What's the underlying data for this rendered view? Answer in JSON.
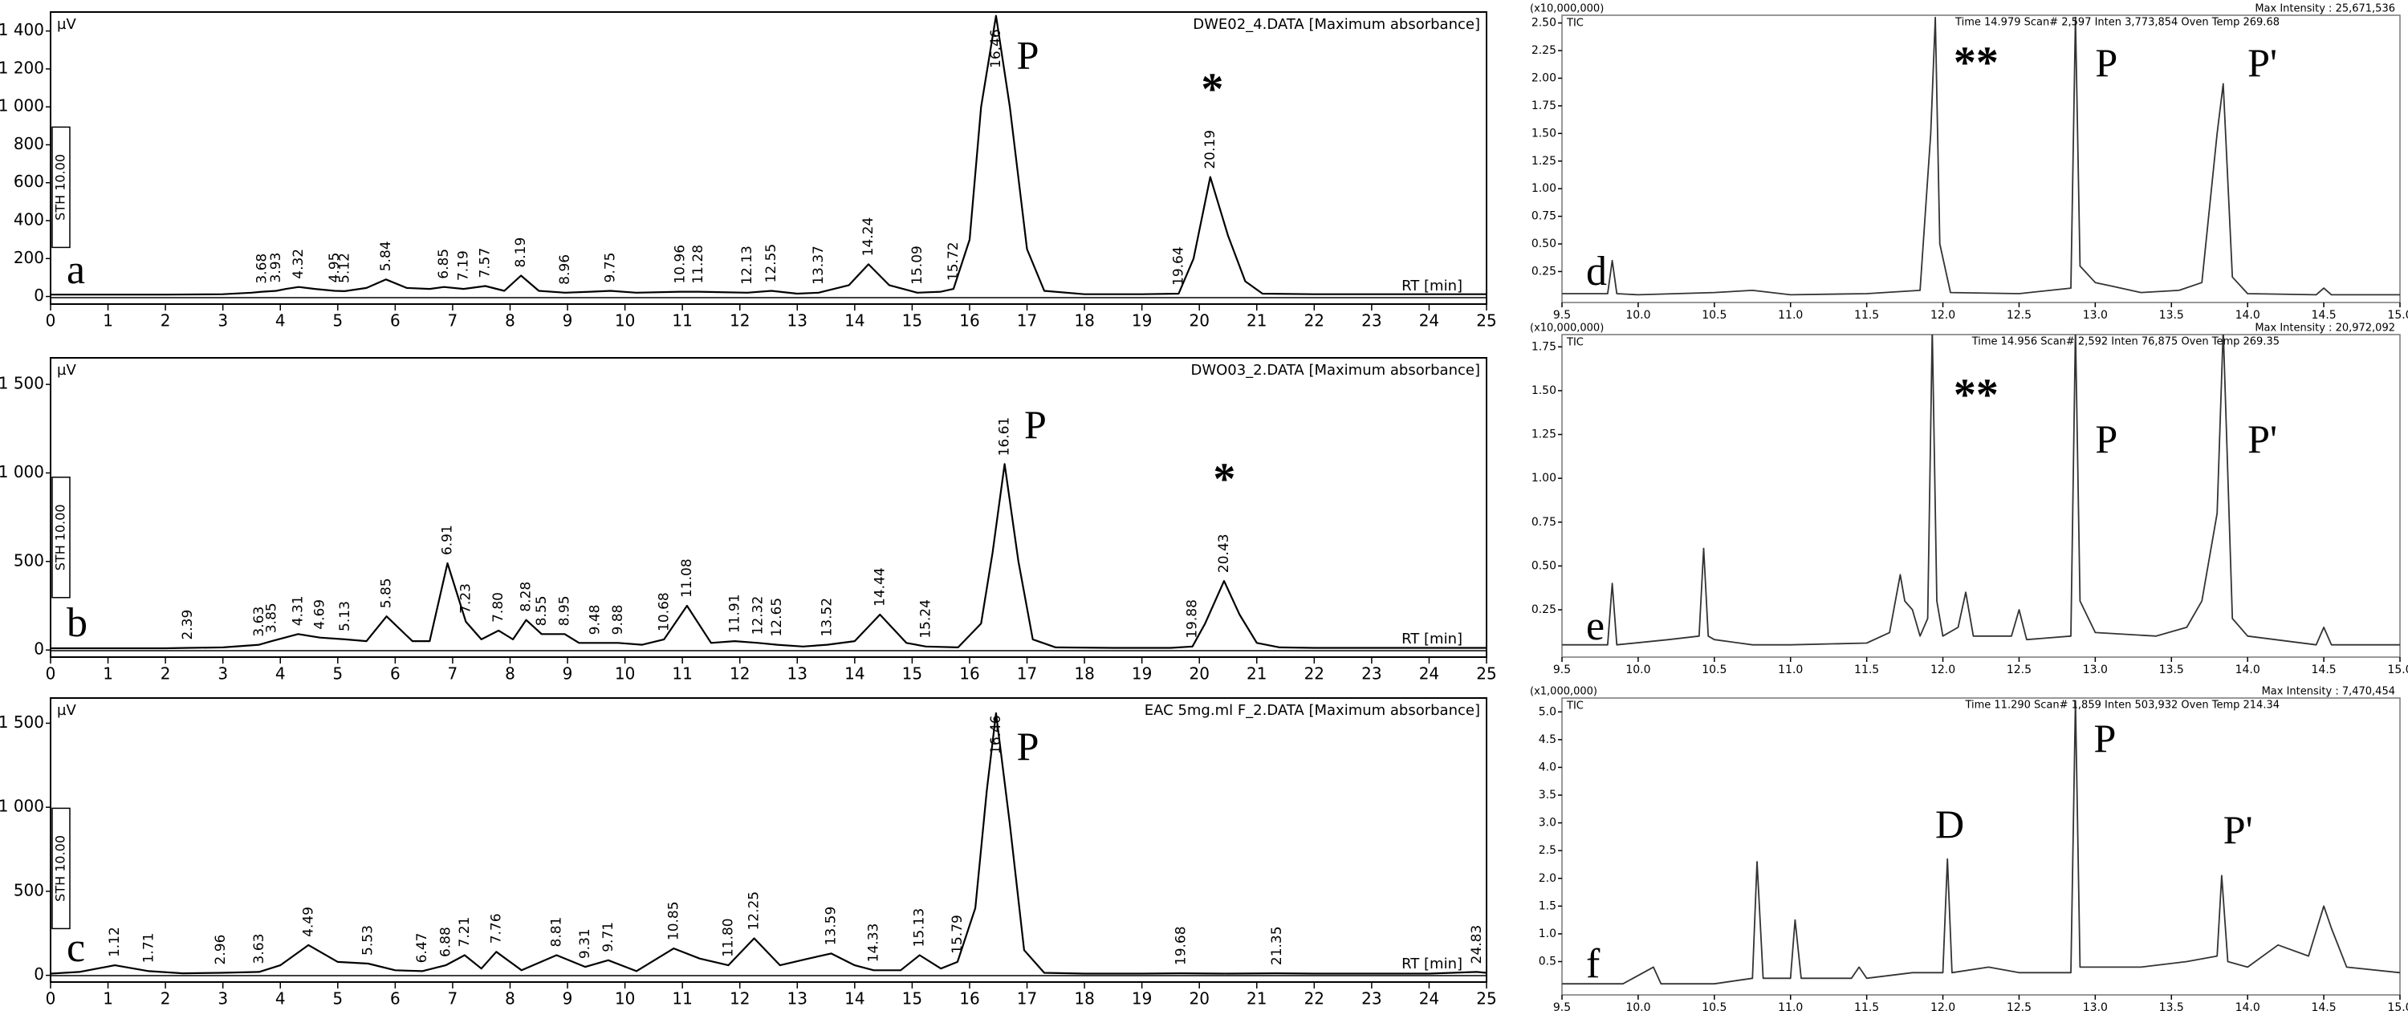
{
  "chart_data": [
    {
      "type": "line",
      "side": "left",
      "panel_label": "a",
      "title": "DWE02_4.DATA [Maximum absorbance]",
      "ylabel": "µV",
      "xlabel": "RT [min]",
      "sth": "STH 10.00",
      "x": [
        0,
        1,
        2,
        3,
        3.5,
        3.68,
        3.93,
        4.1,
        4.32,
        4.6,
        4.95,
        5.12,
        5.5,
        5.84,
        6.2,
        6.6,
        6.85,
        7.19,
        7.57,
        7.9,
        8.19,
        8.5,
        8.96,
        9.4,
        9.75,
        10.2,
        10.96,
        11.28,
        12.13,
        12.55,
        13.0,
        13.37,
        13.9,
        14.24,
        14.6,
        15.09,
        15.5,
        15.72,
        16.0,
        16.2,
        16.46,
        16.7,
        17.0,
        17.3,
        18,
        19,
        19.64,
        19.9,
        20.19,
        20.5,
        20.8,
        21.1,
        22,
        23,
        24,
        25
      ],
      "series": [
        {
          "color": "#000000",
          "values": [
            10,
            10,
            10,
            12,
            20,
            25,
            30,
            40,
            50,
            40,
            30,
            28,
            45,
            90,
            45,
            40,
            50,
            40,
            55,
            30,
            110,
            30,
            20,
            25,
            30,
            20,
            25,
            25,
            20,
            30,
            15,
            20,
            60,
            170,
            60,
            20,
            25,
            40,
            300,
            1000,
            1480,
            1000,
            250,
            30,
            12,
            12,
            15,
            200,
            630,
            320,
            80,
            15,
            12,
            12,
            12,
            12
          ]
        }
      ],
      "xlim": [
        0,
        25
      ],
      "ylim": [
        -40,
        1500
      ],
      "xticks": [
        0,
        1,
        2,
        3,
        4,
        5,
        6,
        7,
        8,
        9,
        10,
        11,
        12,
        13,
        14,
        15,
        16,
        17,
        18,
        19,
        20,
        21,
        22,
        23,
        24,
        25
      ],
      "yticks": [
        0,
        200,
        400,
        600,
        800,
        {
          "value": 1000,
          "label": "1 000"
        },
        {
          "value": 1200,
          "label": "1 200"
        },
        {
          "value": 1400,
          "label": "1 400"
        }
      ],
      "peak_labels": [
        3.68,
        3.93,
        4.32,
        4.95,
        5.12,
        5.84,
        6.85,
        7.19,
        7.57,
        8.19,
        8.96,
        9.75,
        10.96,
        11.28,
        12.13,
        12.55,
        13.37,
        14.24,
        15.09,
        15.72,
        16.46,
        19.64,
        20.19
      ],
      "annotations": [
        {
          "text": "P",
          "x": 16.82,
          "y": 1250
        },
        {
          "text": "*",
          "x": 20.03,
          "y": 1070
        }
      ]
    },
    {
      "type": "line",
      "side": "left",
      "panel_label": "b",
      "title": "DWO03_2.DATA [Maximum absorbance]",
      "ylabel": "µV",
      "xlabel": "RT [min]",
      "sth": "STH 10.00",
      "x": [
        0,
        1,
        2,
        2.39,
        3,
        3.63,
        3.85,
        4.31,
        4.69,
        5.13,
        5.5,
        5.85,
        6.3,
        6.6,
        6.91,
        7.23,
        7.5,
        7.8,
        8.05,
        8.28,
        8.55,
        8.95,
        9.2,
        9.48,
        9.88,
        10.3,
        10.68,
        11.08,
        11.5,
        11.91,
        12.32,
        12.65,
        13.1,
        13.52,
        14.0,
        14.44,
        14.9,
        15.24,
        15.8,
        16.2,
        16.4,
        16.61,
        16.85,
        17.1,
        17.5,
        18.5,
        19.5,
        19.88,
        20.1,
        20.43,
        20.7,
        21.0,
        21.4,
        22,
        23,
        24,
        25
      ],
      "series": [
        {
          "color": "#000000",
          "values": [
            10,
            10,
            10,
            12,
            15,
            30,
            50,
            90,
            70,
            60,
            50,
            190,
            50,
            50,
            490,
            160,
            60,
            110,
            60,
            170,
            90,
            90,
            40,
            40,
            40,
            30,
            60,
            250,
            40,
            50,
            40,
            30,
            20,
            30,
            50,
            200,
            40,
            20,
            15,
            150,
            550,
            1050,
            500,
            60,
            15,
            12,
            12,
            20,
            150,
            390,
            200,
            40,
            15,
            12,
            12,
            12,
            12
          ]
        }
      ],
      "xlim": [
        0,
        25
      ],
      "ylim": [
        -40,
        1650
      ],
      "xticks": [
        0,
        1,
        2,
        3,
        4,
        5,
        6,
        7,
        8,
        9,
        10,
        11,
        12,
        13,
        14,
        15,
        16,
        17,
        18,
        19,
        20,
        21,
        22,
        23,
        24,
        25
      ],
      "yticks": [
        0,
        500,
        {
          "value": 1000,
          "label": "1 000"
        },
        {
          "value": 1500,
          "label": "1 500"
        }
      ],
      "peak_labels": [
        2.39,
        3.63,
        3.85,
        4.31,
        4.69,
        5.13,
        5.85,
        6.91,
        7.23,
        {
          "value": 7.8,
          "label": "7.80"
        },
        8.28,
        8.55,
        8.95,
        9.48,
        9.88,
        10.68,
        11.08,
        11.91,
        12.32,
        12.65,
        13.52,
        14.44,
        15.24,
        16.61,
        19.88,
        20.43
      ],
      "annotations": [
        {
          "text": "P",
          "x": 16.95,
          "y": 1250
        },
        {
          "text": "*",
          "x": 20.24,
          "y": 940
        }
      ]
    },
    {
      "type": "line",
      "side": "left",
      "panel_label": "c",
      "title": "EAC 5mg.ml F_2.DATA [Maximum absorbance]",
      "ylabel": "µV",
      "xlabel": "RT [min]",
      "sth": "STH 10.00",
      "x": [
        0,
        0.5,
        1.12,
        1.71,
        2.3,
        2.96,
        3.63,
        4.0,
        4.49,
        5.0,
        5.53,
        6.0,
        6.47,
        6.88,
        7.21,
        7.5,
        7.76,
        8.2,
        8.81,
        9.31,
        9.71,
        10.2,
        10.85,
        11.3,
        11.8,
        12.25,
        12.7,
        13.2,
        13.59,
        14.0,
        14.33,
        14.8,
        15.13,
        15.5,
        15.79,
        16.1,
        16.3,
        16.46,
        16.7,
        16.95,
        17.3,
        18,
        19,
        19.68,
        20.5,
        21.35,
        22,
        23,
        24,
        24.83,
        25
      ],
      "series": [
        {
          "color": "#000000",
          "values": [
            10,
            20,
            60,
            25,
            12,
            15,
            20,
            60,
            180,
            80,
            70,
            30,
            25,
            60,
            120,
            40,
            140,
            30,
            120,
            50,
            90,
            25,
            160,
            100,
            60,
            220,
            60,
            100,
            130,
            60,
            30,
            30,
            120,
            40,
            80,
            400,
            1100,
            1560,
            900,
            150,
            15,
            10,
            10,
            12,
            10,
            12,
            10,
            10,
            10,
            20,
            15
          ]
        }
      ],
      "xlim": [
        0,
        25
      ],
      "ylim": [
        -40,
        1650
      ],
      "xticks": [
        0,
        1,
        2,
        3,
        4,
        5,
        6,
        7,
        8,
        9,
        10,
        11,
        12,
        13,
        14,
        15,
        16,
        17,
        18,
        19,
        20,
        21,
        22,
        23,
        24,
        25
      ],
      "yticks": [
        0,
        500,
        {
          "value": 1000,
          "label": "1 000"
        },
        {
          "value": 1500,
          "label": "1 500"
        }
      ],
      "peak_labels": [
        1.12,
        1.71,
        2.96,
        3.63,
        4.49,
        5.53,
        6.47,
        6.88,
        7.21,
        7.76,
        8.81,
        9.31,
        9.71,
        10.85,
        {
          "value": 11.8,
          "label": "11.80"
        },
        12.25,
        13.59,
        14.33,
        15.13,
        15.79,
        16.46,
        19.68,
        21.35,
        24.83
      ],
      "annotations": [
        {
          "text": "P",
          "x": 16.82,
          "y": 1336
        }
      ]
    },
    {
      "type": "line",
      "side": "right",
      "panel_label": "d",
      "scale_note": "(x10,000,000)",
      "trace_name": "TIC",
      "status": "Time 14.979   Scan# 2,597   Inten   3,773,854   Oven Temp 269.68",
      "max_intensity": "Max Intensity : 25,671,536",
      "x": [
        9.5,
        9.8,
        9.83,
        9.86,
        10.0,
        10.5,
        10.75,
        11.0,
        11.5,
        11.85,
        11.92,
        11.95,
        11.98,
        12.05,
        12.5,
        12.84,
        12.87,
        12.9,
        13.0,
        13.1,
        13.3,
        13.55,
        13.7,
        13.8,
        13.84,
        13.9,
        14.0,
        14.45,
        14.5,
        14.55,
        15.0
      ],
      "series": [
        {
          "color": "#333333",
          "values": [
            0.05,
            0.05,
            0.35,
            0.05,
            0.04,
            0.06,
            0.08,
            0.04,
            0.05,
            0.08,
            1.5,
            2.55,
            0.5,
            0.06,
            0.05,
            0.1,
            2.55,
            0.3,
            0.15,
            0.12,
            0.06,
            0.08,
            0.15,
            1.5,
            1.95,
            0.2,
            0.05,
            0.04,
            0.1,
            0.04,
            0.04
          ]
        }
      ],
      "xlim": [
        9.5,
        15.0
      ],
      "ylim": [
        -0.03,
        2.57
      ],
      "xticks": [
        9.5,
        {
          "value": 10,
          "label": "10.0"
        },
        10.5,
        {
          "value": 11,
          "label": "11.0"
        },
        11.5,
        {
          "value": 12,
          "label": "12.0"
        },
        12.5,
        {
          "value": 13,
          "label": "13.0"
        },
        13.5,
        {
          "value": 14,
          "label": "14.0"
        },
        14.5,
        {
          "value": 15,
          "label": "15.0"
        }
      ],
      "yticks": [
        0.25,
        {
          "value": 0.5,
          "label": "0.50"
        },
        0.75,
        {
          "value": 1,
          "label": "1.00"
        },
        1.25,
        {
          "value": 1.5,
          "label": "1.50"
        },
        1.75,
        {
          "value": 2,
          "label": "2.00"
        },
        2.25,
        {
          "value": 2.5,
          "label": "2.50"
        }
      ],
      "annotations": [
        {
          "text": "**",
          "x": 12.07,
          "y": 2.1
        },
        {
          "text": "P",
          "x": 13.0,
          "y": 2.1
        },
        {
          "text": "P'",
          "x": 14.0,
          "y": 2.1
        }
      ]
    },
    {
      "type": "line",
      "side": "right",
      "panel_label": "e",
      "scale_note": "(x10,000,000)",
      "trace_name": "TIC",
      "status": "Time 14.956   Scan# 2,592   Inten   76,875   Oven Temp 269.35",
      "max_intensity": "Max Intensity : 20,972,092",
      "x": [
        9.5,
        9.8,
        9.83,
        9.86,
        10.2,
        10.4,
        10.43,
        10.46,
        10.5,
        10.75,
        11.0,
        11.5,
        11.65,
        11.72,
        11.75,
        11.8,
        11.85,
        11.9,
        11.93,
        11.96,
        12.0,
        12.1,
        12.15,
        12.2,
        12.45,
        12.5,
        12.55,
        12.84,
        12.87,
        12.9,
        13.0,
        13.4,
        13.6,
        13.7,
        13.8,
        13.84,
        13.9,
        14.0,
        14.45,
        14.5,
        14.55,
        15.0
      ],
      "series": [
        {
          "color": "#333333",
          "values": [
            0.05,
            0.05,
            0.4,
            0.05,
            0.08,
            0.1,
            0.6,
            0.1,
            0.08,
            0.05,
            0.05,
            0.06,
            0.12,
            0.45,
            0.3,
            0.25,
            0.1,
            0.2,
            1.85,
            0.3,
            0.1,
            0.15,
            0.35,
            0.1,
            0.1,
            0.25,
            0.08,
            0.1,
            1.85,
            0.3,
            0.12,
            0.1,
            0.15,
            0.3,
            0.8,
            1.85,
            0.2,
            0.1,
            0.05,
            0.15,
            0.05,
            0.05
          ]
        }
      ],
      "xlim": [
        9.5,
        15.0
      ],
      "ylim": [
        -0.02,
        1.82
      ],
      "xticks": [
        9.5,
        {
          "value": 10,
          "label": "10.0"
        },
        10.5,
        {
          "value": 11,
          "label": "11.0"
        },
        11.5,
        {
          "value": 12,
          "label": "12.0"
        },
        12.5,
        {
          "value": 13,
          "label": "13.0"
        },
        13.5,
        {
          "value": 14,
          "label": "14.0"
        },
        14.5,
        {
          "value": 15,
          "label": "15.0"
        }
      ],
      "yticks": [
        0.25,
        {
          "value": 0.5,
          "label": "0.50"
        },
        0.75,
        {
          "value": 1,
          "label": "1.00"
        },
        1.25,
        {
          "value": 1.5,
          "label": "1.50"
        },
        1.75
      ],
      "annotations": [
        {
          "text": "**",
          "x": 12.07,
          "y": 1.45
        },
        {
          "text": "P",
          "x": 13.0,
          "y": 1.2
        },
        {
          "text": "P'",
          "x": 14.0,
          "y": 1.2
        }
      ]
    },
    {
      "type": "line",
      "side": "right",
      "panel_label": "f",
      "scale_note": "(x1,000,000)",
      "trace_name": "TIC",
      "status": "Time 11.290   Scan# 1,859   Inten   503,932   Oven Temp 214.34",
      "max_intensity": "Max Intensity : 7,470,454",
      "x": [
        9.5,
        9.9,
        10.1,
        10.15,
        10.5,
        10.75,
        10.78,
        10.82,
        11.0,
        11.03,
        11.07,
        11.4,
        11.45,
        11.5,
        11.8,
        12.0,
        12.03,
        12.06,
        12.3,
        12.5,
        12.84,
        12.87,
        12.9,
        13.3,
        13.6,
        13.8,
        13.83,
        13.87,
        14.0,
        14.2,
        14.4,
        14.5,
        14.55,
        14.65,
        15.0
      ],
      "series": [
        {
          "color": "#333333",
          "values": [
            0.1,
            0.1,
            0.4,
            0.1,
            0.1,
            0.2,
            2.3,
            0.2,
            0.2,
            1.25,
            0.2,
            0.2,
            0.4,
            0.2,
            0.3,
            0.3,
            2.35,
            0.3,
            0.4,
            0.3,
            0.3,
            5.2,
            0.4,
            0.4,
            0.5,
            0.6,
            2.05,
            0.5,
            0.4,
            0.8,
            0.6,
            1.5,
            1.1,
            0.4,
            0.3
          ]
        }
      ],
      "xlim": [
        9.5,
        15.0
      ],
      "ylim": [
        -0.1,
        5.25
      ],
      "xticks": [
        9.5,
        {
          "value": 10,
          "label": "10.0"
        },
        10.5,
        {
          "value": 11,
          "label": "11.0"
        },
        11.5,
        {
          "value": 12,
          "label": "12.0"
        },
        12.5,
        {
          "value": 13,
          "label": "13.0"
        },
        13.5,
        {
          "value": 14,
          "label": "14.0"
        },
        14.5,
        {
          "value": 15,
          "label": "15.0"
        }
      ],
      "yticks": [
        0.5,
        {
          "value": 1,
          "label": "1.0"
        },
        1.5,
        {
          "value": 2,
          "label": "2.0"
        },
        2.5,
        {
          "value": 3,
          "label": "3.0"
        },
        3.5,
        {
          "value": 4,
          "label": "4.0"
        },
        4.5,
        {
          "value": 5,
          "label": "5.0"
        }
      ],
      "annotations": [
        {
          "text": "D",
          "x": 11.95,
          "y": 2.9
        },
        {
          "text": "P",
          "x": 12.99,
          "y": 4.45
        },
        {
          "text": "P'",
          "x": 13.84,
          "y": 2.8
        }
      ]
    }
  ]
}
